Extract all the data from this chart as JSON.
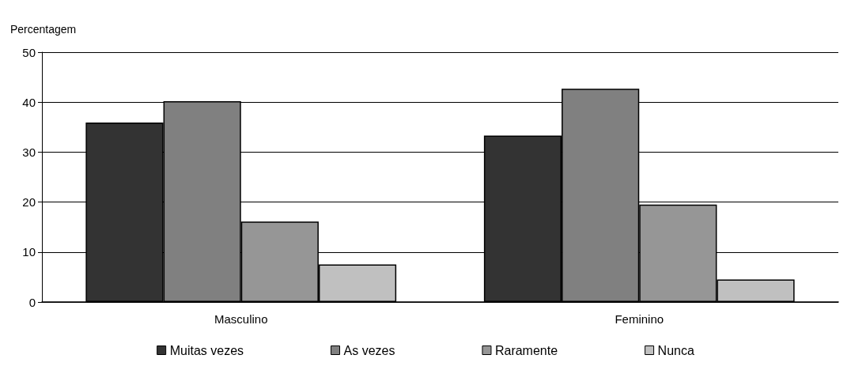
{
  "chart_data": {
    "type": "bar",
    "ylabel": "Percentagem",
    "categories": [
      "Masculino",
      "Feminino"
    ],
    "series": [
      {
        "name": "Muitas vezes",
        "color": "#333333",
        "values": [
          35.9,
          33.3
        ]
      },
      {
        "name": "As vezes",
        "color": "#808080",
        "values": [
          40.2,
          42.7
        ]
      },
      {
        "name": "Raramente",
        "color": "#969696",
        "values": [
          16.1,
          19.5
        ]
      },
      {
        "name": "Nunca",
        "color": "#c0c0c0",
        "values": [
          7.5,
          4.5
        ]
      }
    ],
    "ylim": [
      0,
      50
    ],
    "yticks": [
      0,
      10,
      20,
      30,
      40,
      50
    ],
    "grid": "y",
    "legend": "bottom"
  }
}
